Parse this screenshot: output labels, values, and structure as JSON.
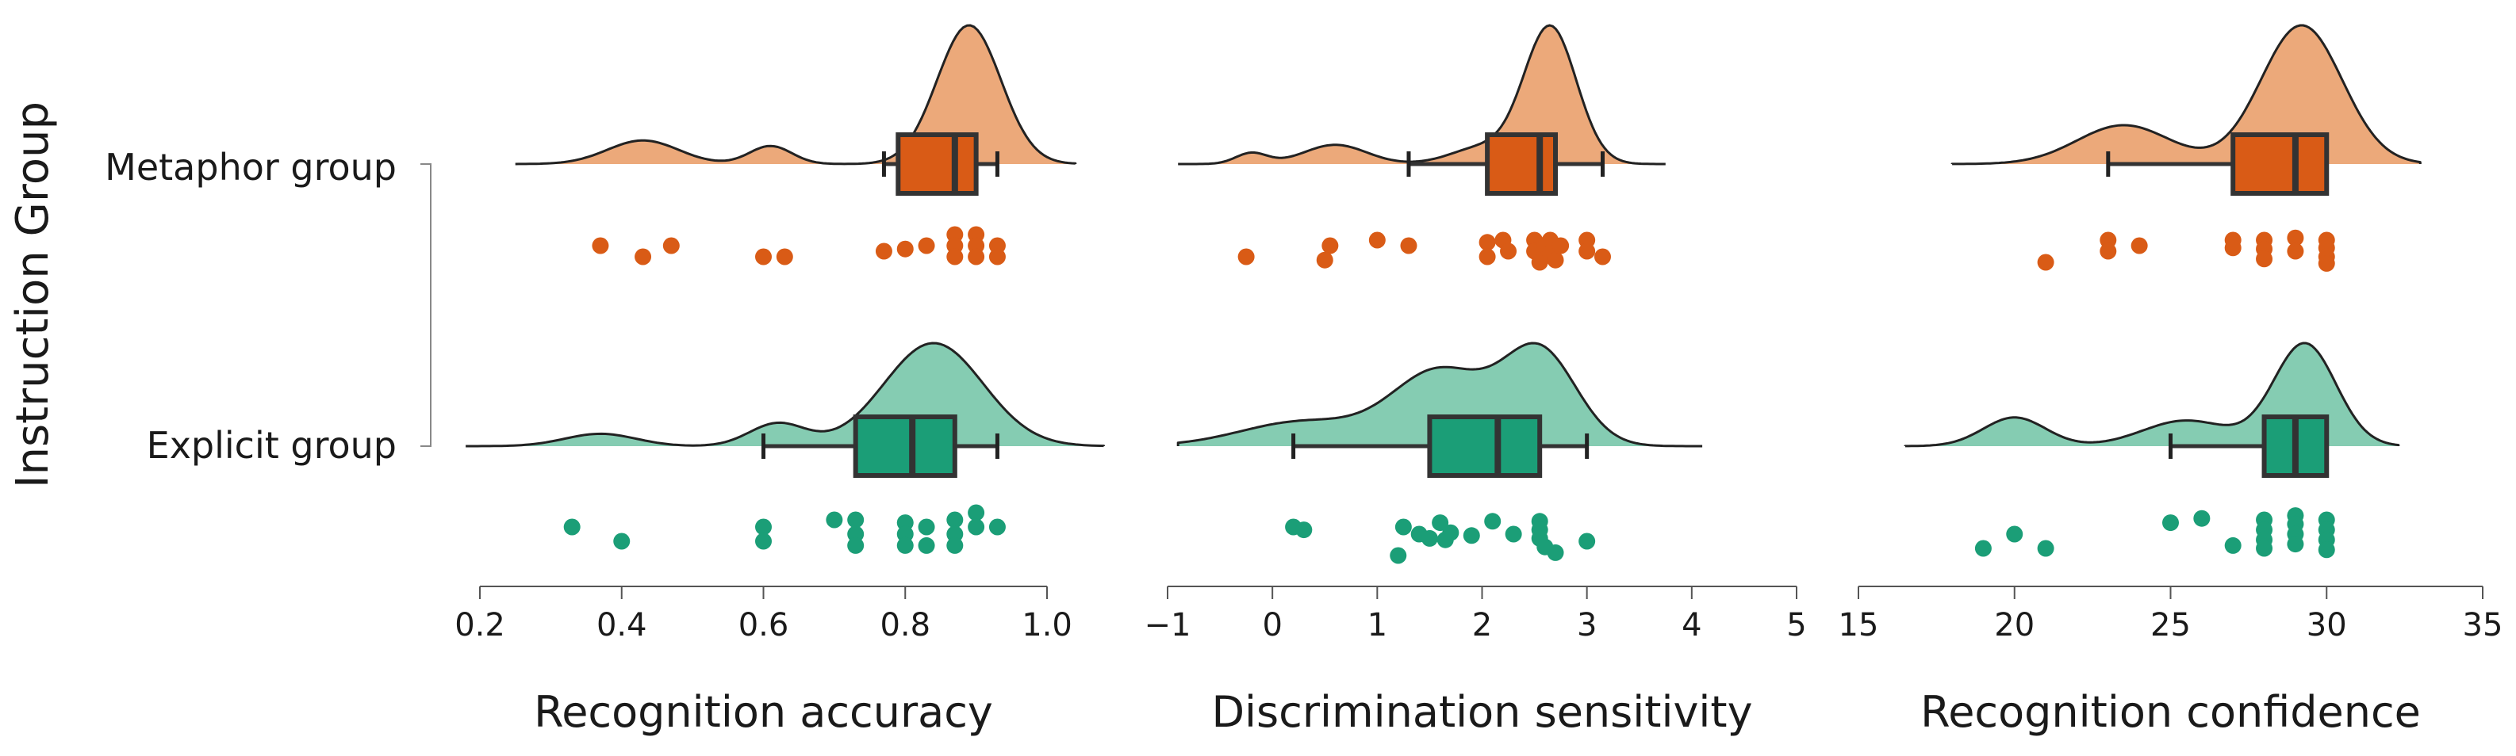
{
  "colors": {
    "metaphor_fill": "#eca97a",
    "metaphor_box": "#d95b16",
    "metaphor_point": "#d95b16",
    "explicit_fill": "#85ccb2",
    "explicit_box": "#1b9e77",
    "explicit_point": "#1b9e77",
    "outline": "#333333"
  },
  "y_axis_title": "Instruction Group",
  "groups": [
    "Metaphor group",
    "Explicit group"
  ],
  "chart_data": [
    {
      "type": "raincloud",
      "xlabel": "Recognition accuracy",
      "xlim": [
        0.2,
        1.0
      ],
      "ticks": [
        0.2,
        0.4,
        0.6,
        0.8,
        1.0
      ],
      "tick_labels": [
        "0.2",
        "0.4",
        "0.6",
        "0.8",
        "1.0"
      ],
      "groups": [
        {
          "name": "Metaphor group",
          "density_range": [
            0.25,
            1.04
          ],
          "density_components": [
            [
              0.43,
              0.05,
              0.17
            ],
            [
              0.61,
              0.03,
              0.13
            ],
            [
              0.89,
              0.045,
              1.0
            ]
          ],
          "box": {
            "whisker_low": 0.77,
            "q1": 0.79,
            "median": 0.87,
            "q3": 0.9,
            "whisker_high": 0.93
          },
          "points": [
            [
              0.37,
              0
            ],
            [
              0.47,
              0
            ],
            [
              0.43,
              1
            ],
            [
              0.6,
              1
            ],
            [
              0.63,
              1
            ],
            [
              0.77,
              0.5
            ],
            [
              0.8,
              0.3
            ],
            [
              0.83,
              0
            ],
            [
              0.87,
              -1
            ],
            [
              0.87,
              0
            ],
            [
              0.87,
              1
            ],
            [
              0.9,
              -1
            ],
            [
              0.9,
              0
            ],
            [
              0.9,
              1
            ],
            [
              0.93,
              0
            ],
            [
              0.93,
              1
            ]
          ]
        },
        {
          "name": "Explicit group",
          "density_range": [
            0.18,
            1.08
          ],
          "density_components": [
            [
              0.37,
              0.05,
              0.12
            ],
            [
              0.62,
              0.04,
              0.22
            ],
            [
              0.84,
              0.07,
              1.0
            ]
          ],
          "box": {
            "whisker_low": 0.6,
            "q1": 0.73,
            "median": 0.81,
            "q3": 0.87,
            "whisker_high": 0.93
          },
          "points": [
            [
              0.33,
              0
            ],
            [
              0.4,
              1
            ],
            [
              0.6,
              0
            ],
            [
              0.6,
              1
            ],
            [
              0.7,
              -0.5
            ],
            [
              0.73,
              -0.5
            ],
            [
              0.73,
              0.5
            ],
            [
              0.73,
              1.3
            ],
            [
              0.8,
              -0.3
            ],
            [
              0.8,
              0.5
            ],
            [
              0.8,
              1.3
            ],
            [
              0.83,
              0
            ],
            [
              0.83,
              1.3
            ],
            [
              0.87,
              -0.5
            ],
            [
              0.87,
              0.5
            ],
            [
              0.87,
              1.3
            ],
            [
              0.9,
              -1
            ],
            [
              0.9,
              0
            ],
            [
              0.93,
              0
            ]
          ]
        }
      ]
    },
    {
      "type": "raincloud",
      "xlabel": "Discrimination sensitivity",
      "xlim": [
        -1,
        5
      ],
      "ticks": [
        -1,
        0,
        1,
        2,
        3,
        4,
        5
      ],
      "tick_labels": [
        "−1",
        "0",
        "1",
        "2",
        "3",
        "4",
        "5"
      ],
      "groups": [
        {
          "name": "Metaphor group",
          "density_range": [
            -0.9,
            3.75
          ],
          "density_components": [
            [
              -0.2,
              0.15,
              0.08
            ],
            [
              0.6,
              0.3,
              0.14
            ],
            [
              2.65,
              0.25,
              1.0
            ],
            [
              2.0,
              0.3,
              0.12
            ]
          ],
          "box": {
            "whisker_low": 1.3,
            "q1": 2.05,
            "median": 2.55,
            "q3": 2.7,
            "whisker_high": 3.15
          },
          "points": [
            [
              -0.25,
              1
            ],
            [
              0.55,
              0
            ],
            [
              0.5,
              1.3
            ],
            [
              1.0,
              -0.5
            ],
            [
              1.3,
              0
            ],
            [
              2.05,
              -0.3
            ],
            [
              2.05,
              1
            ],
            [
              2.2,
              -0.5
            ],
            [
              2.25,
              0.5
            ],
            [
              2.5,
              -0.5
            ],
            [
              2.5,
              0.5
            ],
            [
              2.55,
              1.5
            ],
            [
              2.6,
              0
            ],
            [
              2.65,
              -0.5
            ],
            [
              2.65,
              0.7
            ],
            [
              2.7,
              1.3
            ],
            [
              2.75,
              0
            ],
            [
              3.0,
              -0.5
            ],
            [
              3.0,
              0.5
            ],
            [
              3.15,
              1
            ]
          ]
        },
        {
          "name": "Explicit group",
          "density_range": [
            -0.9,
            4.1
          ],
          "density_components": [
            [
              0.3,
              0.6,
              0.25
            ],
            [
              1.6,
              0.45,
              0.75
            ],
            [
              2.55,
              0.35,
              0.95
            ]
          ],
          "box": {
            "whisker_low": 0.2,
            "q1": 1.5,
            "median": 2.15,
            "q3": 2.55,
            "whisker_high": 3.0
          },
          "points": [
            [
              0.2,
              0
            ],
            [
              0.3,
              0.2
            ],
            [
              1.25,
              0
            ],
            [
              1.4,
              0.5
            ],
            [
              1.2,
              2
            ],
            [
              1.5,
              0.8
            ],
            [
              1.6,
              -0.3
            ],
            [
              1.65,
              0.9
            ],
            [
              1.7,
              0.4
            ],
            [
              1.9,
              0.6
            ],
            [
              2.1,
              -0.4
            ],
            [
              2.3,
              0.5
            ],
            [
              2.55,
              -0.4
            ],
            [
              2.55,
              0.2
            ],
            [
              2.55,
              0.8
            ],
            [
              2.6,
              1.4
            ],
            [
              2.7,
              1.8
            ],
            [
              3.0,
              1
            ]
          ]
        }
      ]
    },
    {
      "type": "raincloud",
      "xlabel": "Recognition confidence",
      "xlim": [
        15,
        35
      ],
      "ticks": [
        15,
        20,
        25,
        30,
        35
      ],
      "tick_labels": [
        "15",
        "20",
        "25",
        "30",
        "35"
      ],
      "groups": [
        {
          "name": "Metaphor group",
          "density_range": [
            18,
            33
          ],
          "density_components": [
            [
              23.5,
              1.5,
              0.28
            ],
            [
              29.2,
              1.3,
              1.0
            ]
          ],
          "box": {
            "whisker_low": 23,
            "q1": 27,
            "median": 29,
            "q3": 30,
            "whisker_high": 30
          },
          "points": [
            [
              21,
              1.5
            ],
            [
              23,
              -0.5
            ],
            [
              23,
              0.5
            ],
            [
              24,
              0
            ],
            [
              27,
              -0.5
            ],
            [
              27,
              0.2
            ],
            [
              28,
              -0.5
            ],
            [
              28,
              0.3
            ],
            [
              28,
              1.2
            ],
            [
              29,
              -0.7
            ],
            [
              29,
              0.5
            ],
            [
              30,
              -0.5
            ],
            [
              30,
              0.2
            ],
            [
              30,
              1
            ],
            [
              30,
              1.6
            ]
          ]
        },
        {
          "name": "Explicit group",
          "density_range": [
            16.5,
            32.3
          ],
          "density_components": [
            [
              20,
              1.0,
              0.28
            ],
            [
              25.5,
              1.4,
              0.25
            ],
            [
              29.3,
              1.0,
              1.0
            ]
          ],
          "box": {
            "whisker_low": 25,
            "q1": 28,
            "median": 29,
            "q3": 30,
            "whisker_high": 30
          },
          "points": [
            [
              19,
              1.5
            ],
            [
              20,
              0.5
            ],
            [
              21,
              1.5
            ],
            [
              25,
              -0.3
            ],
            [
              26,
              -0.6
            ],
            [
              27,
              1.3
            ],
            [
              28,
              -0.5
            ],
            [
              28,
              0.2
            ],
            [
              28,
              0.9
            ],
            [
              28,
              1.5
            ],
            [
              29,
              -0.8
            ],
            [
              29,
              -0.2
            ],
            [
              29,
              0.5
            ],
            [
              29,
              1.2
            ],
            [
              30,
              -0.5
            ],
            [
              30,
              0.2
            ],
            [
              30,
              0.9
            ],
            [
              30,
              1.6
            ]
          ]
        }
      ]
    }
  ]
}
